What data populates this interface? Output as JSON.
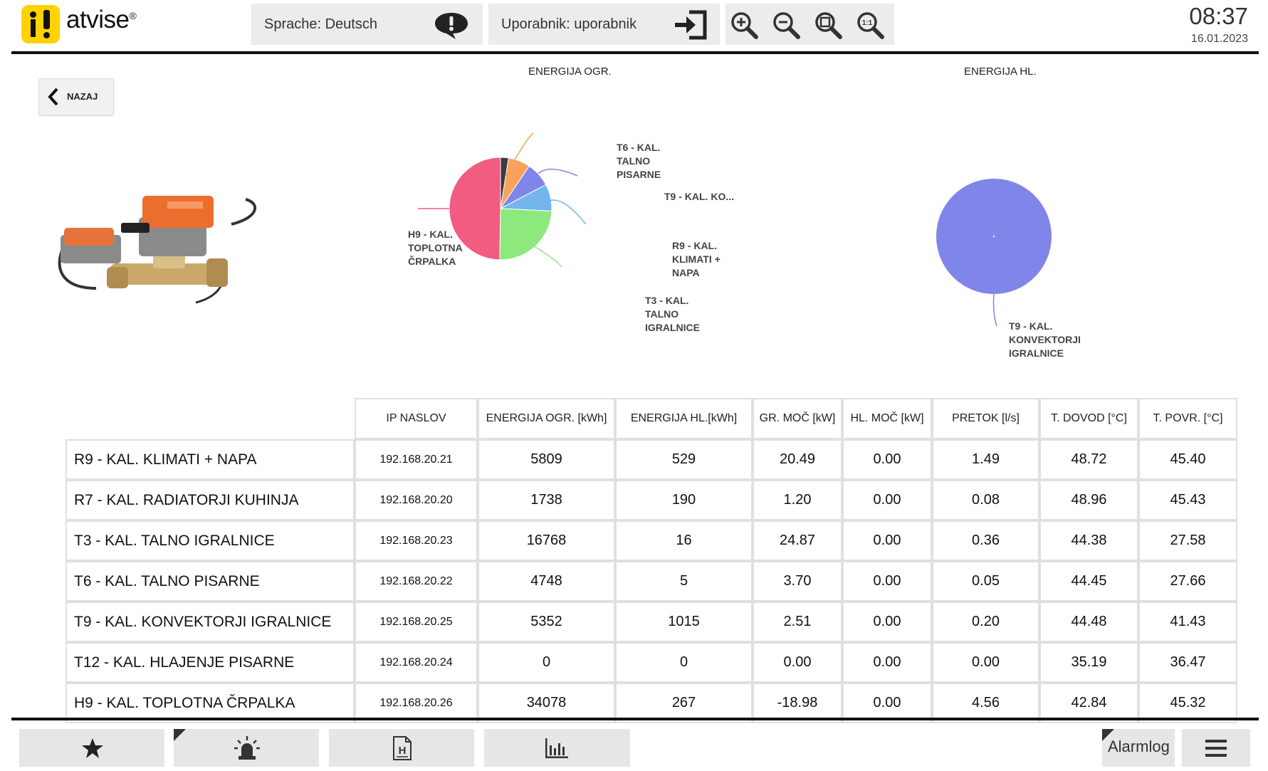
{
  "header": {
    "brand": "atvise",
    "brand_mark": "®",
    "language_label": "Sprache: Deutsch",
    "user_label": "Uporabnik: uporabnik",
    "time": "08:37",
    "date": "16.01.2023"
  },
  "back_button": {
    "label": "NAZAJ"
  },
  "charts": [
    {
      "title": "ENERGIJA OGR.",
      "chart_data": {
        "type": "pie",
        "title": "ENERGIJA OGR.",
        "slices": [
          {
            "label": "R9 - KAL. KLIMATI + NAPA",
            "value": 5809,
            "color": "#75b5ee",
            "display": "R9 - KAL. KLIMATI + NAPA"
          },
          {
            "label": "R7 - KAL. RADIATORJI KUHINJA",
            "value": 1738,
            "color": "#3a3a44",
            "display": ""
          },
          {
            "label": "T3 - KAL. TALNO IGRALNICE",
            "value": 16768,
            "color": "#8de87d",
            "display": "T3 - KAL. TALNO IGRALNICE"
          },
          {
            "label": "T6 - KAL. TALNO PISARNE",
            "value": 4748,
            "color": "#f7a35c",
            "display": "T6 - KAL. TALNO PISARNE"
          },
          {
            "label": "T9 - KAL. KONVEKTORJI IGRALNICE",
            "value": 5352,
            "color": "#8085e9",
            "display": "T9 - KAL. KO..."
          },
          {
            "label": "T12 - KAL. HLAJENJE PISARNE",
            "value": 0,
            "color": "#aaaaaa",
            "display": ""
          },
          {
            "label": "H9 - KAL. TOPLOTNA ČRPALKA",
            "value": 34078,
            "color": "#f15c80",
            "display": "H9 - KAL. TOPLOTNA ČRPALKA"
          }
        ]
      }
    },
    {
      "title": "ENERGIJA HL.",
      "chart_data": {
        "type": "pie",
        "title": "ENERGIJA HL.",
        "slices": [
          {
            "label": "T9 - KAL. KONVEKTORJI IGRALNICE",
            "value": 1015,
            "color": "#8085e9",
            "display": "T9 - KAL. KONVEKTORJI IGRALNICE"
          }
        ]
      }
    }
  ],
  "table": {
    "headers": [
      "IP NASLOV",
      "ENERGIJA OGR. [kWh]",
      "ENERGIJA HL.[kWh]",
      "GR. MOČ [kW]",
      "HL. MOČ [kW]",
      "PRETOK [l/s]",
      "T. DOVOD [°C]",
      "T. POVR. [°C]"
    ],
    "rows": [
      {
        "name": "R9 - KAL. KLIMATI + NAPA",
        "ip": "192.168.20.21",
        "e_ogr": "5809",
        "e_hl": "529",
        "gr_moc": "20.49",
        "hl_moc": "0.00",
        "pretok": "1.49",
        "t_dovod": "48.72",
        "t_povr": "45.40"
      },
      {
        "name": "R7 - KAL. RADIATORJI KUHINJA",
        "ip": "192.168.20.20",
        "e_ogr": "1738",
        "e_hl": "190",
        "gr_moc": "1.20",
        "hl_moc": "0.00",
        "pretok": "0.08",
        "t_dovod": "48.96",
        "t_povr": "45.43"
      },
      {
        "name": "T3 - KAL. TALNO IGRALNICE",
        "ip": "192.168.20.23",
        "e_ogr": "16768",
        "e_hl": "16",
        "gr_moc": "24.87",
        "hl_moc": "0.00",
        "pretok": "0.36",
        "t_dovod": "44.38",
        "t_povr": "27.58"
      },
      {
        "name": "T6 - KAL. TALNO PISARNE",
        "ip": "192.168.20.22",
        "e_ogr": "4748",
        "e_hl": "5",
        "gr_moc": "3.70",
        "hl_moc": "0.00",
        "pretok": "0.05",
        "t_dovod": "44.45",
        "t_povr": "27.66"
      },
      {
        "name": "T9 - KAL. KONVEKTORJI IGRALNICE",
        "ip": "192.168.20.25",
        "e_ogr": "5352",
        "e_hl": "1015",
        "gr_moc": "2.51",
        "hl_moc": "0.00",
        "pretok": "0.20",
        "t_dovod": "44.48",
        "t_povr": "41.43"
      },
      {
        "name": "T12 - KAL. HLAJENJE PISARNE",
        "ip": "192.168.20.24",
        "e_ogr": "0",
        "e_hl": "0",
        "gr_moc": "0.00",
        "hl_moc": "0.00",
        "pretok": "0.00",
        "t_dovod": "35.19",
        "t_povr": "36.47"
      },
      {
        "name": "H9 - KAL. TOPLOTNA ČRPALKA",
        "ip": "192.168.20.26",
        "e_ogr": "34078",
        "e_hl": "267",
        "gr_moc": "-18.98",
        "hl_moc": "0.00",
        "pretok": "4.56",
        "t_dovod": "42.84",
        "t_povr": "45.32"
      }
    ]
  },
  "footer": {
    "alarmlog_label": "Alarmlog",
    "icons": [
      "star-icon",
      "alarm-siren-icon",
      "history-document-icon",
      "bar-chart-icon",
      "hamburger-menu-icon"
    ]
  }
}
